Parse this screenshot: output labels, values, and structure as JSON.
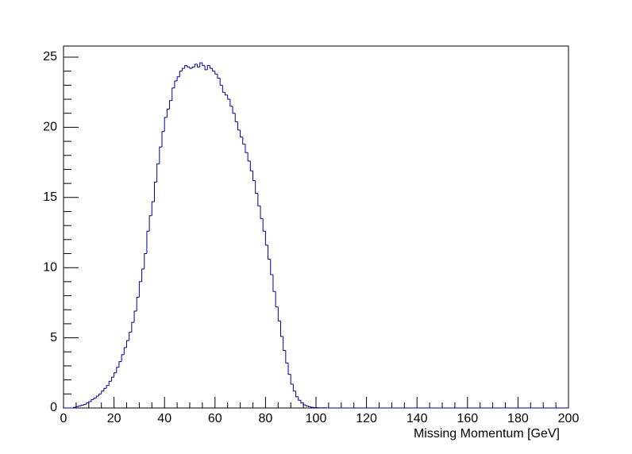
{
  "chart_data": {
    "type": "histogram",
    "xlabel": "Missing Momentum [GeV]",
    "color": "#000099",
    "bins": [
      0,
      1,
      2,
      3,
      4,
      5,
      6,
      7,
      8,
      9,
      10,
      11,
      12,
      13,
      14,
      15,
      16,
      17,
      18,
      19,
      20,
      21,
      22,
      23,
      24,
      25,
      26,
      27,
      28,
      29,
      30,
      31,
      32,
      33,
      34,
      35,
      36,
      37,
      38,
      39,
      40,
      41,
      42,
      43,
      44,
      45,
      46,
      47,
      48,
      49,
      50,
      51,
      52,
      53,
      54,
      55,
      56,
      57,
      58,
      59,
      60,
      61,
      62,
      63,
      64,
      65,
      66,
      67,
      68,
      69,
      70,
      71,
      72,
      73,
      74,
      75,
      76,
      77,
      78,
      79,
      80,
      81,
      82,
      83,
      84,
      85,
      86,
      87,
      88,
      89,
      90,
      91,
      92,
      93,
      94,
      95,
      96,
      97,
      98,
      99,
      100,
      101,
      102,
      103,
      104,
      105,
      106,
      107,
      108,
      109,
      110,
      111,
      112,
      113,
      114,
      115,
      116,
      117,
      118,
      119,
      120,
      121,
      122,
      123,
      124,
      125,
      126,
      127,
      128,
      129,
      130,
      131,
      132,
      133,
      134,
      135,
      136,
      137,
      138,
      139,
      140,
      141,
      142,
      143,
      144,
      145,
      146,
      147,
      148,
      149,
      150,
      151,
      152,
      153,
      154,
      155,
      156,
      157,
      158,
      159,
      160,
      161,
      162,
      163,
      164,
      165,
      166,
      167,
      168,
      169,
      170,
      171,
      172,
      173,
      174,
      175,
      176,
      177,
      178,
      179,
      180,
      181,
      182,
      183,
      184,
      185,
      186,
      187,
      188,
      189,
      190,
      191,
      192,
      193,
      194,
      195,
      196,
      197,
      198,
      199,
      200
    ],
    "values": [
      0,
      0,
      0,
      0,
      0.05,
      0.1,
      0.15,
      0.2,
      0.25,
      0.35,
      0.45,
      0.6,
      0.7,
      0.85,
      1.0,
      1.2,
      1.4,
      1.6,
      1.9,
      2.2,
      2.5,
      2.9,
      3.3,
      3.8,
      4.3,
      4.8,
      5.4,
      6.1,
      6.9,
      7.9,
      9.0,
      9.9,
      11.0,
      12.6,
      13.7,
      14.7,
      16.1,
      17.4,
      18.6,
      19.7,
      20.7,
      21.3,
      21.9,
      22.8,
      23.3,
      23.6,
      24.0,
      24.2,
      24.4,
      24.3,
      24.2,
      24.3,
      24.5,
      24.3,
      24.6,
      24.4,
      24.1,
      24.4,
      24.2,
      24.0,
      23.8,
      23.5,
      23.0,
      22.5,
      22.3,
      22.0,
      21.5,
      21.0,
      20.4,
      19.8,
      19.3,
      18.8,
      18.2,
      17.6,
      16.9,
      16.2,
      15.3,
      14.4,
      13.5,
      12.6,
      11.6,
      10.6,
      9.5,
      8.3,
      7.2,
      6.2,
      5.1,
      4.1,
      3.2,
      2.4,
      1.7,
      1.2,
      0.8,
      0.55,
      0.35,
      0.22,
      0.14,
      0.09,
      0.05,
      0.03,
      0.02,
      0.01,
      0.01,
      0.01,
      0,
      0,
      0,
      0,
      0,
      0,
      0,
      0,
      0,
      0,
      0,
      0,
      0,
      0,
      0,
      0,
      0,
      0,
      0,
      0,
      0,
      0,
      0,
      0,
      0,
      0,
      0,
      0,
      0,
      0,
      0,
      0,
      0,
      0,
      0,
      0,
      0,
      0,
      0,
      0,
      0,
      0,
      0,
      0,
      0,
      0,
      0,
      0,
      0,
      0,
      0,
      0,
      0,
      0,
      0,
      0,
      0,
      0,
      0,
      0,
      0,
      0,
      0,
      0,
      0,
      0,
      0,
      0,
      0,
      0,
      0,
      0,
      0,
      0,
      0,
      0,
      0,
      0,
      0,
      0,
      0,
      0,
      0,
      0,
      0,
      0,
      0,
      0,
      0,
      0,
      0,
      0,
      0,
      0,
      0,
      0
    ],
    "xlim": [
      0,
      200
    ],
    "xticks": [
      0,
      20,
      40,
      60,
      80,
      100,
      120,
      140,
      160,
      180,
      200
    ],
    "ylim": [
      0,
      25
    ],
    "yticks": [
      0,
      5,
      10,
      15,
      20,
      25
    ]
  }
}
